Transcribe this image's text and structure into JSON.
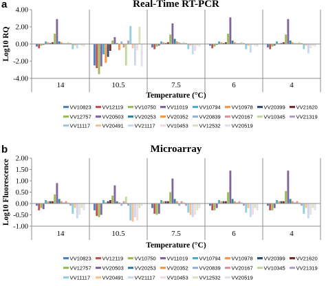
{
  "chart_data": [
    {
      "panel": "a",
      "type": "bar",
      "title": "Real-Time RT-PCR",
      "xlabel": "Temperature (°C)",
      "ylabel": "Log10 RQ",
      "ylim": [
        -4,
        4
      ],
      "yticks": [
        4,
        2,
        0,
        -2,
        -4
      ],
      "ytick_labels": [
        "4.00",
        "2.00",
        "0.00",
        "-2.00",
        "-4.00"
      ],
      "grid": false,
      "legend_position": "bottom",
      "categories": [
        "14",
        "10.5",
        "7.5",
        "6",
        "4"
      ],
      "series": [
        {
          "name": "VV10823",
          "color": "#4f81bd",
          "values": [
            -0.3,
            -2.5,
            -0.4,
            -0.2,
            -0.4
          ]
        },
        {
          "name": "VV12119",
          "color": "#c0504d",
          "values": [
            -0.5,
            -2.8,
            -0.6,
            -0.5,
            -0.6
          ]
        },
        {
          "name": "VV10750",
          "color": "#9bbb59",
          "values": [
            -0.2,
            -3.5,
            -0.3,
            -0.3,
            -0.3
          ]
        },
        {
          "name": "VV11019",
          "color": "#8064a2",
          "values": [
            -0.1,
            -2.6,
            -0.2,
            -0.1,
            -0.2
          ]
        },
        {
          "name": "VV10794",
          "color": "#4bacc6",
          "values": [
            0.3,
            -1.2,
            0.3,
            0.3,
            0.3
          ]
        },
        {
          "name": "VV10978",
          "color": "#f79646",
          "values": [
            0.2,
            -2.2,
            0.2,
            0.2,
            0.1
          ]
        },
        {
          "name": "VV20399",
          "color": "#2c4d75",
          "values": [
            0.1,
            -1.5,
            0.1,
            0.1,
            0.1
          ]
        },
        {
          "name": "VV21620",
          "color": "#772c2a",
          "values": [
            0.2,
            -0.8,
            0.2,
            0.2,
            0.2
          ]
        },
        {
          "name": "VV12757",
          "color": "#9bbb59",
          "values": [
            1.2,
            0.4,
            1.1,
            1.2,
            1.1
          ]
        },
        {
          "name": "VV20503",
          "color": "#8064a2",
          "values": [
            2.9,
            0.8,
            2.4,
            3.1,
            2.9
          ]
        },
        {
          "name": "VV20253",
          "color": "#31859c",
          "values": [
            0.3,
            0.1,
            0.6,
            0.4,
            0.4
          ]
        },
        {
          "name": "VV20352",
          "color": "#f79646",
          "values": [
            0.2,
            -0.7,
            0.3,
            0.2,
            0.2
          ]
        },
        {
          "name": "VV20839",
          "color": "#95b3d7",
          "values": [
            0.1,
            0.3,
            0.2,
            0.1,
            0.1
          ]
        },
        {
          "name": "VV20167",
          "color": "#d99694",
          "values": [
            0.1,
            -0.4,
            0.1,
            0.1,
            0.1
          ]
        },
        {
          "name": "VV10345",
          "color": "#c3d69b",
          "values": [
            0.2,
            -2.5,
            0.2,
            0.2,
            0.2
          ]
        },
        {
          "name": "VV21319",
          "color": "#b2a1c7",
          "values": [
            0.1,
            0.4,
            0.1,
            0.1,
            0.1
          ]
        },
        {
          "name": "VV11117",
          "color": "#93cddd",
          "values": [
            -0.6,
            2.1,
            -0.6,
            -0.6,
            -0.6
          ]
        },
        {
          "name": "VV20491",
          "color": "#fac090",
          "values": [
            -0.2,
            -0.5,
            -0.2,
            -0.2,
            -0.2
          ]
        },
        {
          "name": "VV21117",
          "color": "#c5d9f1",
          "values": [
            -0.5,
            -2.5,
            -1.2,
            -1.0,
            -1.1
          ]
        },
        {
          "name": "VV10453",
          "color": "#f2dcdb",
          "values": [
            -0.1,
            -0.7,
            -0.8,
            -0.1,
            -0.5
          ]
        },
        {
          "name": "VV12532",
          "color": "#d7e4bd",
          "values": [
            -0.2,
            2.0,
            -0.2,
            -0.2,
            -0.2
          ]
        },
        {
          "name": "VV20519",
          "color": "#e4dfec",
          "values": [
            -0.3,
            -2.6,
            -0.3,
            -0.3,
            -0.3
          ]
        }
      ]
    },
    {
      "panel": "b",
      "type": "bar",
      "title": "Microarray",
      "xlabel": "Temperature (°C)",
      "ylabel": "Log10 Fluorescence",
      "ylim": [
        -1,
        2
      ],
      "yticks": [
        2,
        1.5,
        1,
        0.5,
        0,
        -0.5,
        -1
      ],
      "ytick_labels": [
        "2.00",
        "1.50",
        "1.00",
        "0.50",
        "0.00",
        "-0.50",
        "-1.00"
      ],
      "grid": false,
      "legend_position": "bottom",
      "categories": [
        "14",
        "10.5",
        "7.5",
        "6",
        "4"
      ],
      "series": [
        {
          "name": "VV10823",
          "color": "#4f81bd",
          "values": [
            -0.1,
            -0.3,
            -0.2,
            -0.1,
            -0.1
          ]
        },
        {
          "name": "VV12119",
          "color": "#c0504d",
          "values": [
            -0.3,
            -0.55,
            -0.45,
            -0.3,
            -0.3
          ]
        },
        {
          "name": "VV10750",
          "color": "#9bbb59",
          "values": [
            -0.2,
            -0.6,
            -0.5,
            -0.3,
            -0.3
          ]
        },
        {
          "name": "VV11019",
          "color": "#8064a2",
          "values": [
            -0.25,
            -0.5,
            -0.45,
            -0.2,
            -0.2
          ]
        },
        {
          "name": "VV10794",
          "color": "#4bacc6",
          "values": [
            0.15,
            0.15,
            0.15,
            0.15,
            0.15
          ]
        },
        {
          "name": "VV10978",
          "color": "#f79646",
          "values": [
            0.1,
            0.05,
            0.1,
            0.1,
            0.1
          ]
        },
        {
          "name": "VV20399",
          "color": "#2c4d75",
          "values": [
            0.1,
            0.1,
            0.1,
            0.1,
            0.1
          ]
        },
        {
          "name": "VV21620",
          "color": "#772c2a",
          "values": [
            0.1,
            0.15,
            0.1,
            0.1,
            0.1
          ]
        },
        {
          "name": "VV12757",
          "color": "#9bbb59",
          "values": [
            0.4,
            0.35,
            0.5,
            0.5,
            0.55
          ]
        },
        {
          "name": "VV20503",
          "color": "#8064a2",
          "values": [
            0.9,
            0.8,
            1.1,
            1.45,
            1.45
          ]
        },
        {
          "name": "VV20253",
          "color": "#31859c",
          "values": [
            0.2,
            0.1,
            0.2,
            0.2,
            0.2
          ]
        },
        {
          "name": "VV20352",
          "color": "#f79646",
          "values": [
            0.1,
            0.05,
            0.1,
            0.1,
            0.1
          ]
        },
        {
          "name": "VV20839",
          "color": "#95b3d7",
          "values": [
            0.05,
            -0.1,
            -0.1,
            0.05,
            0.05
          ]
        },
        {
          "name": "VV20167",
          "color": "#d99694",
          "values": [
            0.1,
            0.1,
            0.1,
            0.1,
            0.1
          ]
        },
        {
          "name": "VV10345",
          "color": "#c3d69b",
          "values": [
            0.05,
            0.3,
            0.05,
            0.05,
            0.05
          ]
        },
        {
          "name": "VV21319",
          "color": "#b2a1c7",
          "values": [
            -0.1,
            -0.1,
            -0.1,
            -0.1,
            -0.1
          ]
        },
        {
          "name": "VV11117",
          "color": "#93cddd",
          "values": [
            -0.45,
            -0.75,
            -0.4,
            -0.4,
            -0.45
          ]
        },
        {
          "name": "VV20491",
          "color": "#fac090",
          "values": [
            -0.2,
            -0.8,
            -0.5,
            -0.2,
            -0.2
          ]
        },
        {
          "name": "VV21117",
          "color": "#c5d9f1",
          "values": [
            -0.65,
            -0.6,
            -0.6,
            -0.6,
            -0.65
          ]
        },
        {
          "name": "VV10453",
          "color": "#f2dcdb",
          "values": [
            -0.5,
            -0.75,
            -0.5,
            -0.5,
            -0.5
          ]
        },
        {
          "name": "VV12532",
          "color": "#d7e4bd",
          "values": [
            -0.2,
            -0.2,
            -0.3,
            -0.2,
            -0.2
          ]
        },
        {
          "name": "VV20519",
          "color": "#e4dfec",
          "values": [
            -0.3,
            -0.1,
            -0.2,
            -0.3,
            -0.3
          ]
        }
      ]
    }
  ]
}
